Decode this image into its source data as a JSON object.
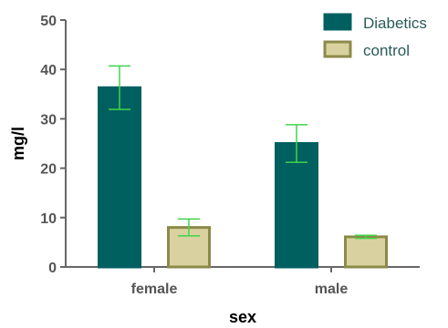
{
  "chart_data": {
    "type": "bar",
    "title": "",
    "xlabel": "sex",
    "ylabel": "mg/l",
    "ylim": [
      0,
      50
    ],
    "yticks": [
      0,
      10,
      20,
      30,
      40,
      50
    ],
    "categories": [
      "female",
      "male"
    ],
    "grid": false,
    "legend_position": "top-right",
    "error_bar_color": "#3fd44a",
    "series": [
      {
        "name": "Diabetics",
        "values": [
          36.3,
          25.0
        ],
        "error": [
          4.4,
          3.8
        ],
        "color": "#005f5f",
        "edge": "#005f5f"
      },
      {
        "name": "control",
        "values": [
          8.0,
          6.1
        ],
        "error": [
          1.7,
          0.3
        ],
        "color": "#d9d2a0",
        "edge": "#8c8a48"
      }
    ]
  }
}
